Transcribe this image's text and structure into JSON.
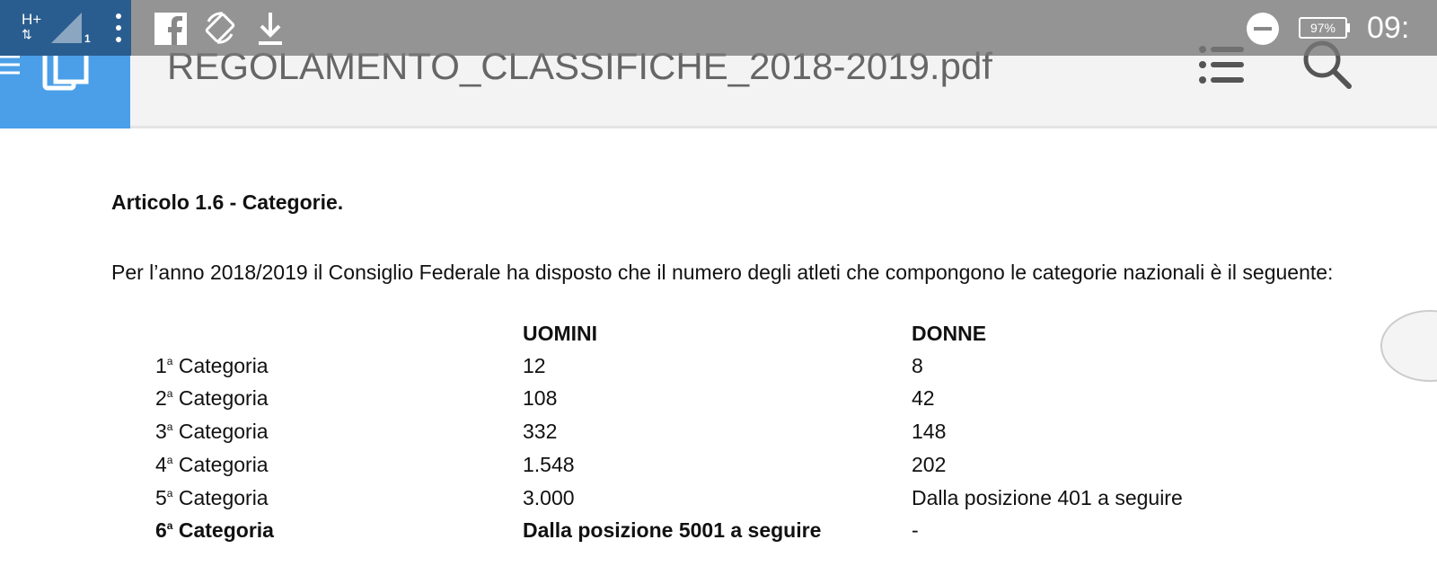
{
  "header": {
    "title": "REGOLAMENTO_CLASSIFICHE_2018-2019.pdf",
    "icons": [
      "menu-icon",
      "pages-icon",
      "list-icon",
      "search-icon"
    ]
  },
  "status_bar": {
    "network": "H+",
    "sim": "1",
    "battery": "97%",
    "time": "09:",
    "icons": [
      "signal-icon",
      "more-icon",
      "facebook-icon",
      "rotate-icon",
      "download-icon",
      "dnd-icon",
      "battery-icon"
    ]
  },
  "document": {
    "heading": "Articolo 1.6 - Categorie.",
    "paragraph": "Per l’anno 2018/2019 il Consiglio Federale ha disposto che il numero degli atleti che compongono le categorie nazionali è il seguente:",
    "columns": [
      "UOMINI",
      "DONNE"
    ],
    "sup": "a",
    "rows": [
      {
        "num": "1",
        "label": "Categoria",
        "men": "12",
        "women": "8"
      },
      {
        "num": "2",
        "label": "Categoria",
        "men": "108",
        "women": "42"
      },
      {
        "num": "3",
        "label": "Categoria",
        "men": "332",
        "women": "148"
      },
      {
        "num": "4",
        "label": "Categoria",
        "men": "1.548",
        "women": "202"
      },
      {
        "num": "5",
        "label": "Categoria",
        "men": "3.000",
        "women": "Dalla posizione 401 a seguire"
      },
      {
        "num": "6",
        "label": "Categoria",
        "men": "Dalla posizione 5001 a seguire",
        "women": "-"
      }
    ]
  }
}
